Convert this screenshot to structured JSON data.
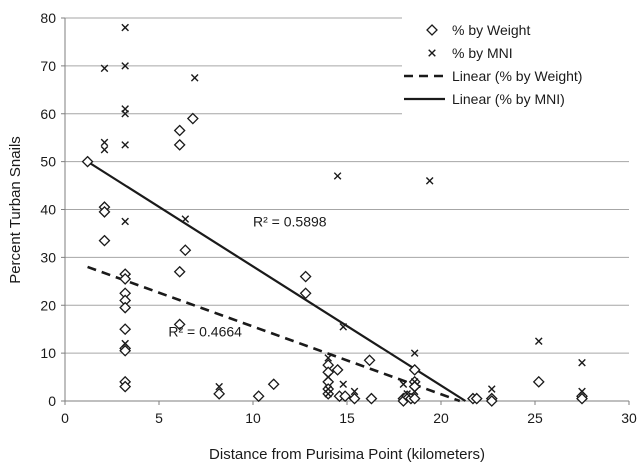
{
  "chart_data": {
    "type": "scatter",
    "xlabel": "Distance from Purisima Point (kilometers)",
    "ylabel": "Percent Turban Snails",
    "xlim": [
      0,
      30
    ],
    "ylim": [
      0,
      80
    ],
    "x_ticks": [
      "0",
      "5",
      "10",
      "15",
      "20",
      "25",
      "30"
    ],
    "y_ticks": [
      "0",
      "10",
      "20",
      "30",
      "40",
      "50",
      "60",
      "70",
      "80"
    ],
    "grid": "horizontal",
    "legend_position": "top-right",
    "series": [
      {
        "name": "% by Weight",
        "marker": "diamond",
        "points": [
          [
            1.2,
            50
          ],
          [
            2.1,
            40.5
          ],
          [
            2.1,
            39.5
          ],
          [
            2.1,
            33.5
          ],
          [
            3.2,
            26.5
          ],
          [
            3.2,
            25.5
          ],
          [
            3.2,
            22.5
          ],
          [
            3.2,
            21
          ],
          [
            3.2,
            19.5
          ],
          [
            3.2,
            15
          ],
          [
            3.2,
            11
          ],
          [
            3.2,
            10.5
          ],
          [
            3.2,
            4
          ],
          [
            3.2,
            3
          ],
          [
            6.1,
            56.5
          ],
          [
            6.1,
            53.5
          ],
          [
            6.1,
            27
          ],
          [
            6.1,
            16
          ],
          [
            6.4,
            31.5
          ],
          [
            6.8,
            59
          ],
          [
            8.2,
            1.5
          ],
          [
            10.3,
            1
          ],
          [
            11.1,
            3.5
          ],
          [
            12.8,
            26
          ],
          [
            12.8,
            22.5
          ],
          [
            14.0,
            7.5
          ],
          [
            14.0,
            6
          ],
          [
            14.0,
            4
          ],
          [
            14.0,
            2.5
          ],
          [
            14.0,
            1.5
          ],
          [
            14.5,
            6.5
          ],
          [
            14.6,
            1
          ],
          [
            14.9,
            1
          ],
          [
            15.4,
            0.5
          ],
          [
            16.2,
            8.5
          ],
          [
            16.3,
            0.5
          ],
          [
            18.0,
            0.5
          ],
          [
            18.0,
            0
          ],
          [
            18.2,
            1
          ],
          [
            18.4,
            0.5
          ],
          [
            18.6,
            6.5
          ],
          [
            18.6,
            4
          ],
          [
            18.6,
            3
          ],
          [
            18.6,
            0.5
          ],
          [
            21.7,
            0.5
          ],
          [
            21.9,
            0.5
          ],
          [
            22.7,
            0.5
          ],
          [
            22.7,
            0
          ],
          [
            25.2,
            4
          ],
          [
            27.5,
            1
          ],
          [
            27.5,
            0.5
          ]
        ]
      },
      {
        "name": "% by MNI",
        "marker": "x",
        "points": [
          [
            2.1,
            69.5
          ],
          [
            2.1,
            54
          ],
          [
            2.1,
            52.5
          ],
          [
            3.2,
            78
          ],
          [
            3.2,
            70
          ],
          [
            3.2,
            61
          ],
          [
            3.2,
            60
          ],
          [
            3.2,
            53.5
          ],
          [
            3.2,
            37.5
          ],
          [
            3.2,
            12
          ],
          [
            6.4,
            38
          ],
          [
            6.9,
            67.5
          ],
          [
            8.2,
            3
          ],
          [
            14.0,
            9
          ],
          [
            14.0,
            5
          ],
          [
            14.0,
            2.5
          ],
          [
            14.0,
            1.5
          ],
          [
            14.5,
            47
          ],
          [
            14.8,
            15.5
          ],
          [
            14.8,
            3.5
          ],
          [
            15.4,
            2
          ],
          [
            18.0,
            3.5
          ],
          [
            18.2,
            1.5
          ],
          [
            18.6,
            10
          ],
          [
            18.6,
            4
          ],
          [
            18.6,
            2
          ],
          [
            19.4,
            46
          ],
          [
            22.7,
            2.5
          ],
          [
            25.2,
            12.5
          ],
          [
            27.5,
            8
          ],
          [
            27.5,
            2
          ]
        ]
      }
    ],
    "trendlines": [
      {
        "name": "Linear (% by Weight)",
        "style": "dashed",
        "x": [
          1.2,
          21.0
        ],
        "y": [
          28,
          0
        ]
      },
      {
        "name": "Linear (% by MNI)",
        "style": "solid",
        "x": [
          1.2,
          21.3
        ],
        "y": [
          50,
          0
        ]
      }
    ],
    "annotations": [
      {
        "text": "R² = 0.5898",
        "x": 10.0,
        "y": 36.5
      },
      {
        "text": "R² = 0.4664",
        "x": 5.5,
        "y": 13.5
      }
    ]
  }
}
